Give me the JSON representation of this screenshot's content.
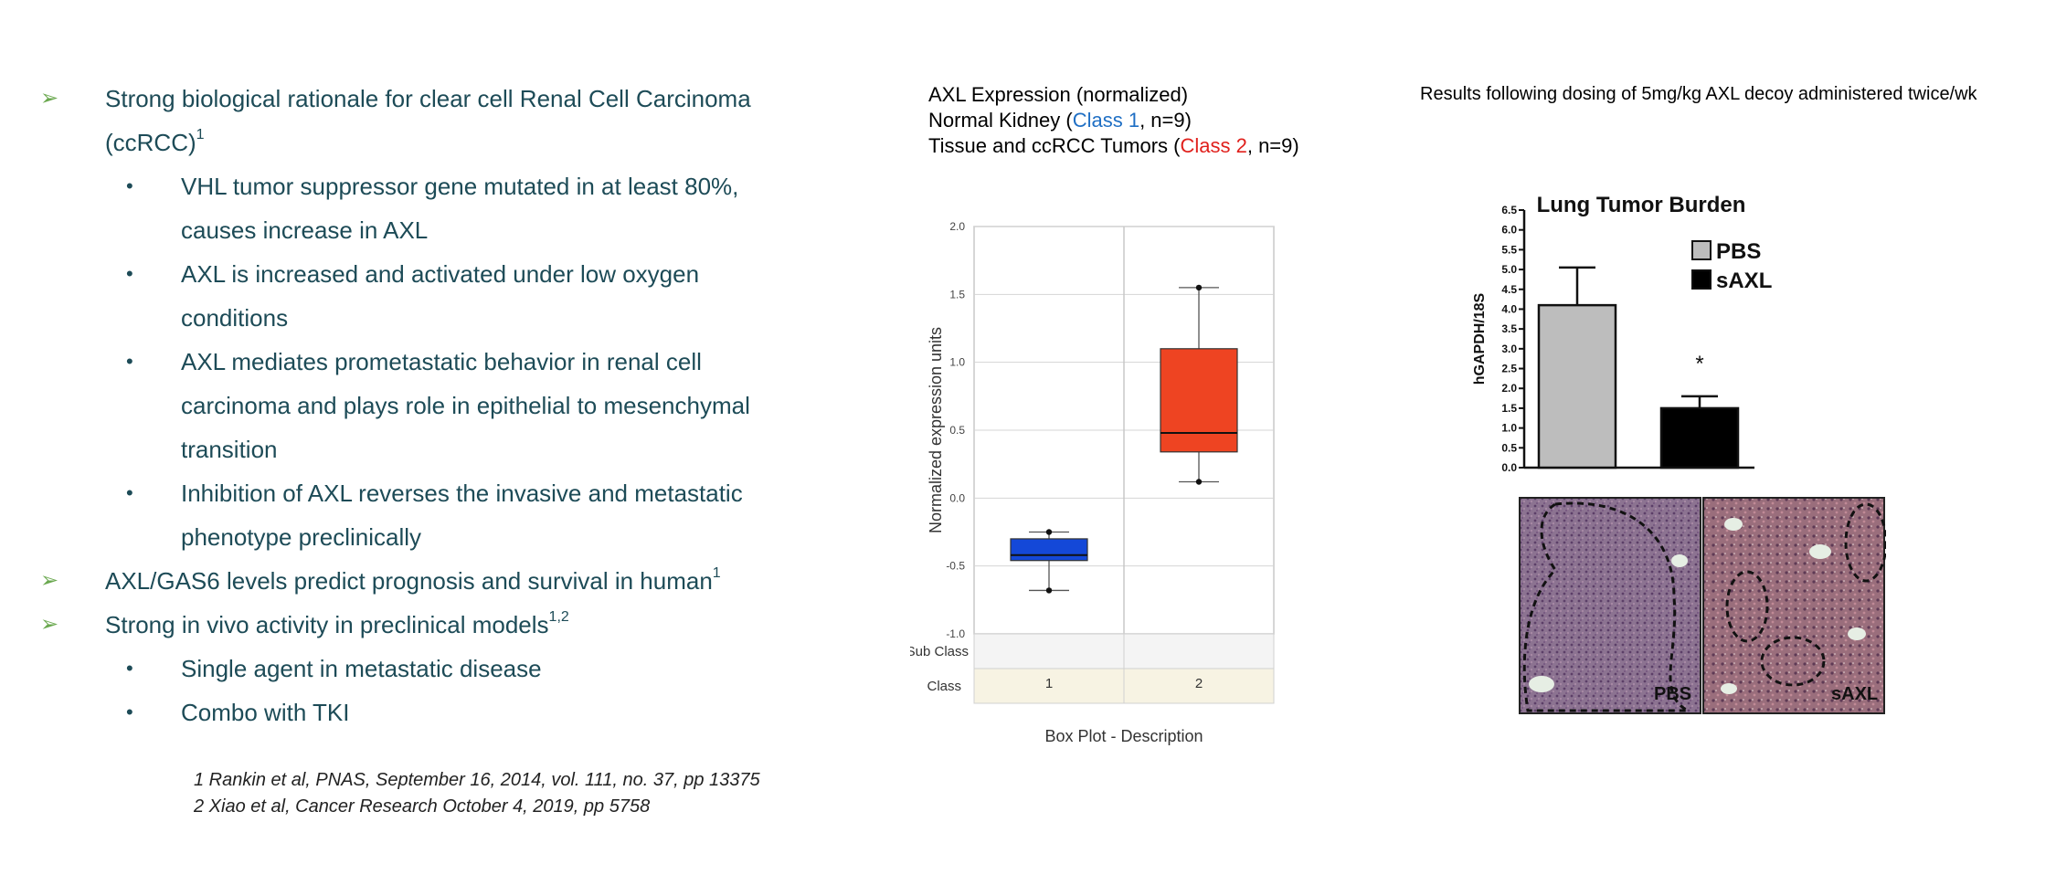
{
  "bullets": [
    {
      "level": 1,
      "text": "Strong biological rationale for clear cell Renal Cell Carcinoma",
      "sup": ""
    },
    {
      "level": 1,
      "text": "(ccRCC)",
      "sup": "1",
      "cont": true
    },
    {
      "level": 2,
      "text": "VHL tumor suppressor gene mutated in at least 80%,",
      "sup": ""
    },
    {
      "level": 2,
      "text": "causes increase in AXL",
      "sup": "",
      "cont": true
    },
    {
      "level": 2,
      "text": "AXL is increased and activated under low oxygen",
      "sup": ""
    },
    {
      "level": 2,
      "text": "conditions",
      "sup": "",
      "cont": true
    },
    {
      "level": 2,
      "text": "AXL mediates prometastatic behavior in renal cell",
      "sup": ""
    },
    {
      "level": 2,
      "text": "carcinoma and plays role in epithelial to mesenchymal",
      "sup": "",
      "cont": true
    },
    {
      "level": 2,
      "text": "transition",
      "sup": "",
      "cont": true
    },
    {
      "level": 2,
      "text": "Inhibition of AXL reverses the invasive and metastatic",
      "sup": ""
    },
    {
      "level": 2,
      "text": "phenotype preclinically",
      "sup": "",
      "cont": true
    },
    {
      "level": 1,
      "text": "AXL/GAS6 levels predict prognosis and survival in human",
      "sup": "1"
    },
    {
      "level": 1,
      "text": "Strong in vivo activity in preclinical models",
      "sup": "1,2"
    },
    {
      "level": 2,
      "text": "Single agent in metastatic disease",
      "sup": ""
    },
    {
      "level": 2,
      "text": "Combo with TKI",
      "sup": ""
    }
  ],
  "bullet_marks": {
    "l1": "➢",
    "l2": "•"
  },
  "references": [
    "1 Rankin et al, PNAS, September 16, 2014, vol. 111, no. 37, pp 13375",
    "2 Xiao et al, Cancer Research October 4, 2019, pp 5758"
  ],
  "middle": {
    "line1": "AXL Expression (normalized)",
    "line2_pre": "Normal Kidney (",
    "line2_class": "Class 1",
    "line2_post": ", n=9)",
    "line3_pre": "Tissue and ccRCC Tumors (",
    "line3_class": "Class 2",
    "line3_post": ", n=9)"
  },
  "right": {
    "header": "Results following dosing of 5mg/kg AXL decoy administered twice/wk",
    "histo_labels": [
      "PBS",
      "sAXL"
    ]
  },
  "chart_data": [
    {
      "type": "box",
      "ylabel": "Normalized expression units",
      "xlabel": "Box Plot - Description",
      "ylim": [
        -1.0,
        2.0
      ],
      "yticks": [
        "2.0",
        "1.5",
        "1.0",
        "0.5",
        "0.0",
        "-0.5",
        "-1.0"
      ],
      "row_labels": [
        "Sub Class",
        "Class"
      ],
      "categories": [
        "1",
        "2"
      ],
      "boxes": [
        {
          "category": "1",
          "min": -0.68,
          "q1": -0.46,
          "median": -0.42,
          "q3": -0.3,
          "max": -0.25,
          "color": "#1448d8"
        },
        {
          "category": "2",
          "min": 0.12,
          "q1": 0.34,
          "median": 0.48,
          "q3": 1.1,
          "max": 1.55,
          "color": "#ee4422"
        }
      ]
    },
    {
      "type": "bar",
      "title": "Lung Tumor Burden",
      "ylabel": "hGAPDH/18S",
      "ylim": [
        0,
        6.5
      ],
      "yticks": [
        "0.0",
        "0.5",
        "1.0",
        "1.5",
        "2.0",
        "2.5",
        "3.0",
        "3.5",
        "4.0",
        "4.5",
        "5.0",
        "5.5",
        "6.0",
        "6.5"
      ],
      "categories": [
        "PBS",
        "sAXL"
      ],
      "values": [
        4.1,
        1.5
      ],
      "errors": [
        0.95,
        0.3
      ],
      "colors": [
        "#bdbdbd",
        "#000000"
      ],
      "legend": [
        "PBS",
        "sAXL"
      ],
      "legend_position": "top-right",
      "annotation": "*"
    }
  ]
}
